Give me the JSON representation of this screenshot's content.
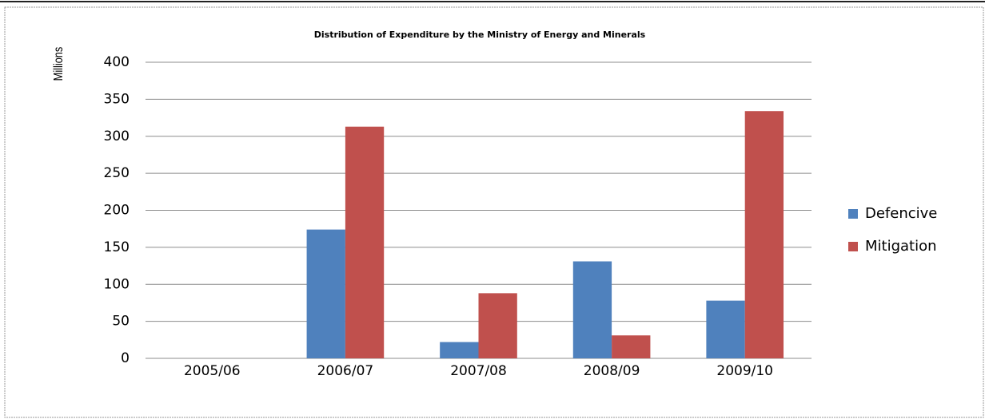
{
  "chart_data": {
    "type": "bar",
    "title": "Distribution of Expenditure by the Ministry of Energy and Minerals",
    "y_label": "Millions",
    "categories": [
      "2005/06",
      "2006/07",
      "2007/08",
      "2008/09",
      "2009/10"
    ],
    "series": [
      {
        "name": "Defencive",
        "color": "#4f81bd",
        "values": [
          0,
          174,
          22,
          131,
          78
        ]
      },
      {
        "name": "Mitigation",
        "color": "#c0504d",
        "values": [
          0,
          313,
          88,
          31,
          334
        ]
      }
    ],
    "ylim": [
      0,
      400
    ],
    "yticks": [
      0,
      50,
      100,
      150,
      200,
      250,
      300,
      350,
      400
    ],
    "grid": true,
    "legend": "right"
  }
}
